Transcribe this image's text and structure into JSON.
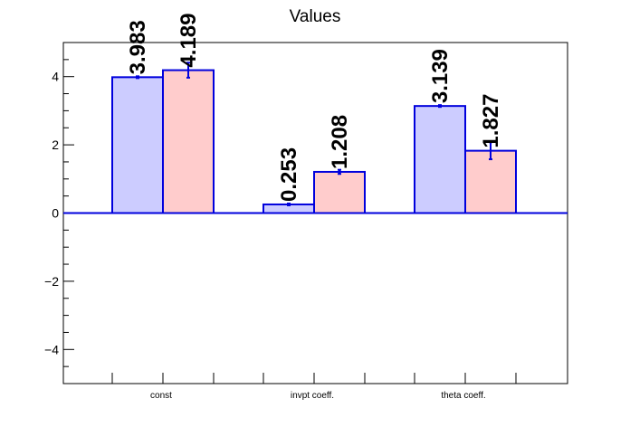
{
  "chart_data": {
    "type": "bar",
    "title": "Values",
    "categories": [
      "const",
      "invpt coeff.",
      "theta coeff."
    ],
    "series": [
      {
        "values": [
          3.983,
          0.253,
          3.139
        ],
        "errors": [
          0.0,
          0.0,
          0.0
        ],
        "fill": "#ccccff",
        "stroke": "#0000dd"
      },
      {
        "values": [
          4.189,
          1.208,
          1.827
        ],
        "errors": [
          0.22,
          0.06,
          0.25
        ],
        "fill": "#ffcccc",
        "stroke": "#0000dd"
      }
    ],
    "value_labels": [
      [
        "3.983",
        "0.253",
        "3.139"
      ],
      [
        "4.189",
        "1.208",
        "1.827"
      ]
    ],
    "ylim": [
      -5,
      5
    ],
    "yticks": [
      -4,
      -2,
      0,
      2,
      4
    ],
    "ytick_labels": [
      "−4",
      "−2",
      "0",
      "2",
      "4"
    ],
    "zero_line_color": "#0000dd",
    "grid": false,
    "legend": "none"
  }
}
